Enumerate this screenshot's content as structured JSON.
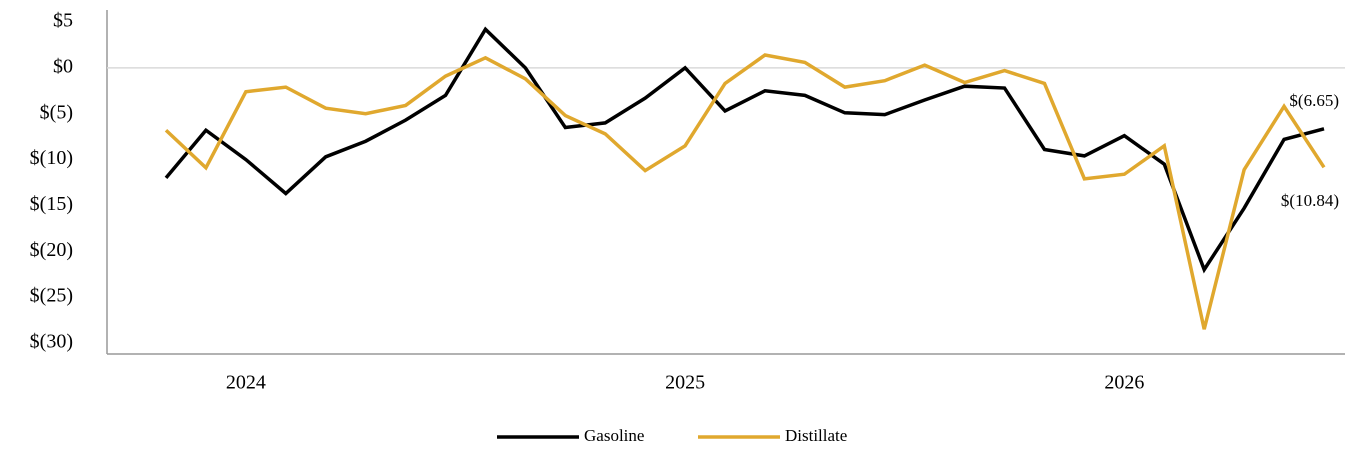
{
  "chart_data": {
    "type": "line",
    "categories": [
      null,
      null,
      "2024",
      null,
      null,
      null,
      null,
      null,
      null,
      null,
      null,
      null,
      null,
      "2025",
      null,
      null,
      null,
      null,
      null,
      null,
      null,
      null,
      null,
      null,
      "2026",
      null,
      null,
      null,
      null,
      null
    ],
    "series": [
      {
        "name": "Gasoline",
        "color": "#000000",
        "values": [
          -12,
          -6.8,
          -10,
          -13.7,
          -9.7,
          -8,
          -5.7,
          -3,
          4.2,
          0,
          -6.5,
          -6,
          -3.3,
          0,
          -4.7,
          -2.5,
          -3,
          -4.9,
          -5.1,
          -3.5,
          -2,
          -2.2,
          -8.9,
          -9.6,
          -7.4,
          -10.5,
          -22,
          -15.3,
          -7.8,
          -6.65
        ],
        "value_labels": [
          null,
          null,
          null,
          null,
          null,
          null,
          null,
          null,
          null,
          null,
          null,
          null,
          null,
          null,
          null,
          null,
          null,
          null,
          null,
          null,
          null,
          null,
          null,
          null,
          null,
          null,
          null,
          null,
          null,
          "$(6.65)"
        ]
      },
      {
        "name": "Distillate",
        "color": "#e0a82e",
        "values": [
          -6.8,
          -10.9,
          -2.6,
          -2.1,
          -4.4,
          -5,
          -4.1,
          -0.9,
          1.1,
          -1.2,
          -5.2,
          -7.2,
          -11.2,
          -8.5,
          -1.7,
          1.4,
          0.6,
          -2.1,
          -1.4,
          0.3,
          -1.6,
          -0.3,
          -1.7,
          -12.1,
          -11.6,
          -8.5,
          -28.5,
          -11.1,
          -4.2,
          -10.84
        ],
        "value_labels": [
          null,
          null,
          null,
          null,
          null,
          null,
          null,
          null,
          null,
          null,
          null,
          null,
          null,
          null,
          null,
          null,
          null,
          null,
          null,
          null,
          null,
          null,
          null,
          null,
          null,
          null,
          null,
          null,
          null,
          "$(10.84)"
        ]
      }
    ],
    "ylim": [
      -30,
      5
    ],
    "yticks": [
      {
        "value": 5,
        "label": "$5"
      },
      {
        "value": 0,
        "label": "$0"
      },
      {
        "value": -5,
        "label": "$(5)"
      },
      {
        "value": -10,
        "label": "$(10)"
      },
      {
        "value": -15,
        "label": "$(15)"
      },
      {
        "value": -20,
        "label": "$(20)"
      },
      {
        "value": -25,
        "label": "$(25)"
      },
      {
        "value": -30,
        "label": "$(30)"
      }
    ],
    "zero_line": true,
    "legend": "bottom"
  }
}
